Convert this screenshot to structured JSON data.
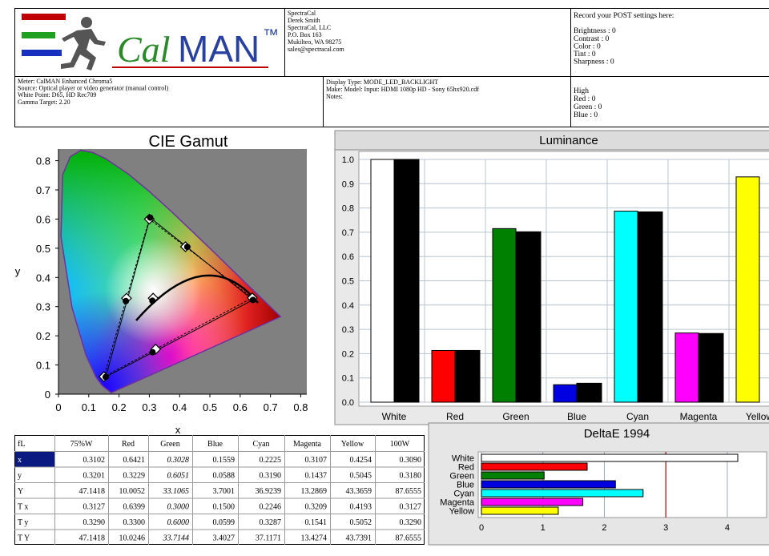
{
  "header": {
    "logo": {
      "cal": "Cal",
      "man": "MAN",
      "tm": "™"
    },
    "contact": [
      "SpectraCal",
      "Derek Smith",
      "SpectraCal, LLC",
      "P.O. Box 163",
      "Mukilteo, WA 98275",
      "sales@spectracal.com"
    ],
    "post_settings": [
      "Record your POST settings here:",
      "Brightness : 0",
      "Contrast : 0",
      "Color : 0",
      "Tint : 0",
      "Sharpness : 0"
    ],
    "meter_info": [
      "Meter: CalMAN Enhanced Chroma5",
      "Source: Optical player or video generator (manual control)",
      "White Point: D65, HD Rec709",
      "Gamma Target: 2.20"
    ],
    "display_info": [
      "Display Type: MODE_LED_BACKLIGHT",
      "Make: Model: Input: HDMI 1080p HD   -    Sony 65hx920.cdf",
      "Notes:"
    ],
    "high_settings": [
      "High",
      "Red : 0",
      "Green : 0",
      "Blue : 0"
    ]
  },
  "chart_data": [
    {
      "type": "scatter",
      "title": "CIE Gamut",
      "x_label": "x",
      "y_label": "y",
      "xlim": [
        0,
        0.82
      ],
      "ylim": [
        0,
        0.84
      ],
      "xticks": [
        0,
        0.1,
        0.2,
        0.3,
        0.4,
        0.5,
        0.6,
        0.7,
        0.8
      ],
      "yticks": [
        0,
        0.1,
        0.2,
        0.3,
        0.4,
        0.5,
        0.6,
        0.7,
        0.8
      ],
      "series": [
        {
          "marker": "diamond",
          "color": "#000000",
          "line": "dashed",
          "x": [
            0.64,
            0.3,
            0.15,
            0.3127,
            0.2246,
            0.3209,
            0.4193
          ],
          "y": [
            0.33,
            0.6,
            0.06,
            0.329,
            0.3287,
            0.1541,
            0.5052
          ]
        },
        {
          "marker": "circle",
          "color": "#000000",
          "line": "solid",
          "x": [
            0.6421,
            0.3028,
            0.1559,
            0.3102,
            0.2225,
            0.3107,
            0.4254
          ],
          "y": [
            0.3229,
            0.6051,
            0.0588,
            0.3201,
            0.319,
            0.1437,
            0.5045
          ]
        }
      ]
    },
    {
      "type": "bar",
      "title": "Luminance",
      "categories": [
        "White",
        "Red",
        "Green",
        "Blue",
        "Cyan",
        "Magenta",
        "Yellow"
      ],
      "series": [
        {
          "colors": [
            "#ffffff",
            "#ff0000",
            "#008000",
            "#0000e0",
            "#00ffff",
            "#ff00ff",
            "#ffff00"
          ],
          "values": [
            1.0,
            0.213,
            0.715,
            0.072,
            0.787,
            0.285,
            0.928
          ]
        },
        {
          "color": "#000000",
          "values": [
            1.0,
            0.213,
            0.702,
            0.078,
            0.784,
            0.283,
            null
          ]
        }
      ],
      "ylim": [
        0,
        1
      ],
      "yticks": [
        {
          "value": 0,
          "label": "0.0"
        },
        0.1,
        0.2,
        0.3,
        0.4,
        0.5,
        0.6,
        0.7,
        0.8,
        0.9,
        {
          "value": 1,
          "label": "1.0"
        }
      ],
      "grid": true
    },
    {
      "type": "hbar",
      "title": "DeltaE 1994",
      "categories": [
        "White",
        "Red",
        "Green",
        "Blue",
        "Cyan",
        "Magenta",
        "Yellow"
      ],
      "colors": [
        "#ffffff",
        "#ff0000",
        "#008000",
        "#0000e0",
        "#00ffff",
        "#ff00ff",
        "#ffff00"
      ],
      "values": [
        4.17,
        1.72,
        1.02,
        2.18,
        2.63,
        1.65,
        1.25
      ],
      "xlim": [
        0,
        4.6
      ],
      "xticks": [
        0,
        1,
        2,
        3,
        4
      ],
      "threshold": 3,
      "threshold_color": "#c00000",
      "grid": true
    }
  ],
  "table": {
    "header": [
      "fL",
      "75%W",
      "Red",
      "Green",
      "Blue",
      "Cyan",
      "Magenta",
      "Yellow",
      "100W"
    ],
    "highlight_row": 0,
    "rows": [
      [
        "x",
        "0.3102",
        "0.6421",
        "0.3028",
        "0.1559",
        "0.2225",
        "0.3107",
        "0.4254",
        "0.3090"
      ],
      [
        "y",
        "0.3201",
        "0.3229",
        "0.6051",
        "0.0588",
        "0.3190",
        "0.1437",
        "0.5045",
        "0.3180"
      ],
      [
        "Y",
        "47.1418",
        "10.0052",
        "33.1065",
        "3.7001",
        "36.9239",
        "13.2869",
        "43.3659",
        "87.6555"
      ],
      [
        "T x",
        "0.3127",
        "0.6399",
        "0.3000",
        "0.1500",
        "0.2246",
        "0.3209",
        "0.4193",
        "0.3127"
      ],
      [
        "T y",
        "0.3290",
        "0.3300",
        "0.6000",
        "0.0599",
        "0.3287",
        "0.1541",
        "0.5052",
        "0.3290"
      ],
      [
        "T Y",
        "47.1418",
        "10.0246",
        "33.7144",
        "3.4027",
        "37.1171",
        "13.4274",
        "43.7391",
        "87.6555"
      ]
    ]
  }
}
